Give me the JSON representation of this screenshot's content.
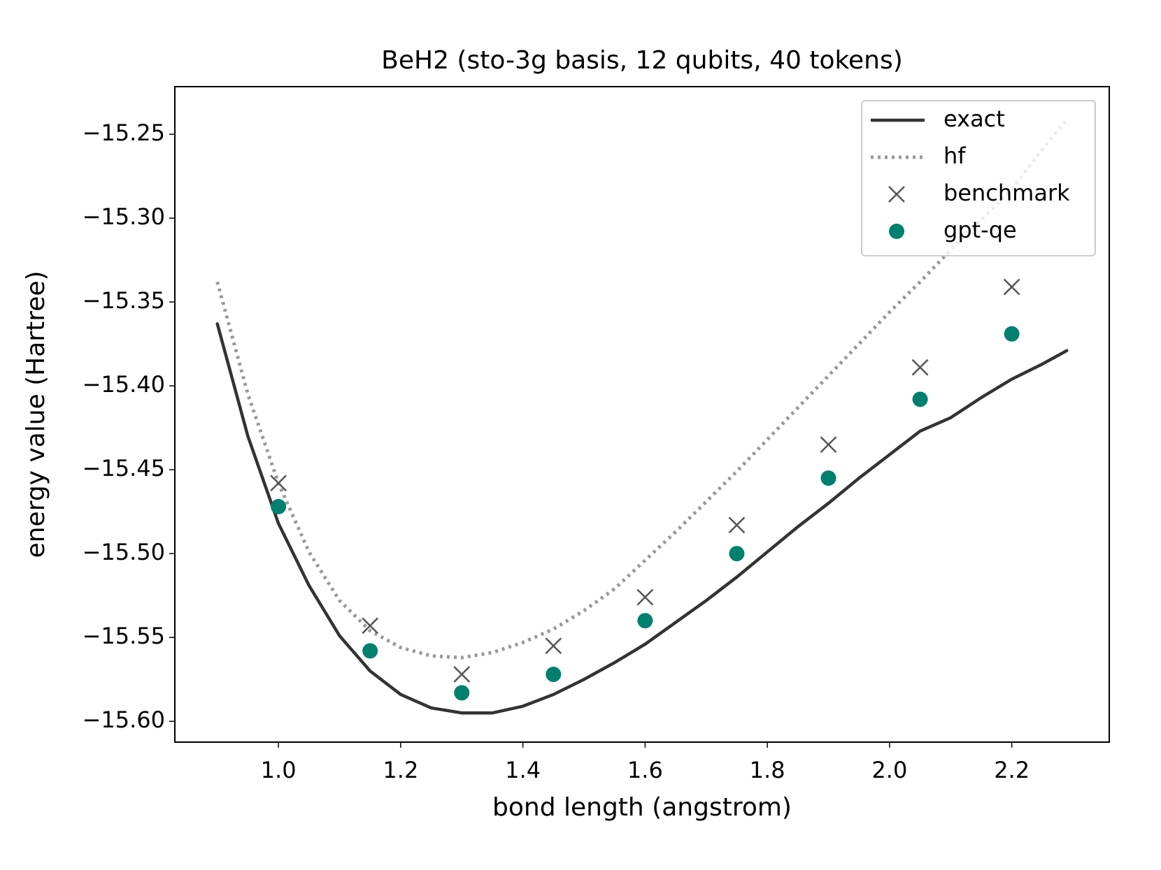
{
  "chart_data": {
    "type": "line",
    "title": "BeH2 (sto-3g basis, 12 qubits, 40 tokens)",
    "xlabel": "bond length (angstrom)",
    "ylabel": "energy value (Hartree)",
    "xlim": [
      0.8305,
      2.3595
    ],
    "ylim": [
      -15.6124,
      -15.2216
    ],
    "xticks": [
      {
        "value": 1.0,
        "label": "1.0"
      },
      1.2,
      1.4,
      1.6,
      1.8,
      {
        "value": 2.0,
        "label": "2.0"
      },
      2.2
    ],
    "yticks": [
      {
        "value": -15.6,
        "label": "−15.60"
      },
      {
        "value": -15.55,
        "label": "−15.55"
      },
      {
        "value": -15.5,
        "label": "−15.50"
      },
      {
        "value": -15.45,
        "label": "−15.45"
      },
      {
        "value": -15.4,
        "label": "−15.40"
      },
      {
        "value": -15.35,
        "label": "−15.35"
      },
      {
        "value": -15.3,
        "label": "−15.30"
      },
      {
        "value": -15.25,
        "label": "−15.25"
      }
    ],
    "grid": false,
    "legend": "upper right",
    "series": [
      {
        "name": "exact",
        "color": "#333333",
        "linestyle": "solid",
        "x": [
          0.9,
          0.95,
          1.0,
          1.05,
          1.1,
          1.15,
          1.2,
          1.25,
          1.3,
          1.35,
          1.4,
          1.45,
          1.5,
          1.55,
          1.6,
          1.65,
          1.7,
          1.75,
          1.8,
          1.85,
          1.9,
          1.95,
          2.0,
          2.05,
          2.1,
          2.15,
          2.2,
          2.25,
          2.29
        ],
        "values": [
          -15.363,
          -15.43,
          -15.482,
          -15.519,
          -15.549,
          -15.57,
          -15.584,
          -15.592,
          -15.595,
          -15.595,
          -15.591,
          -15.584,
          -15.575,
          -15.565,
          -15.554,
          -15.541,
          -15.528,
          -15.514,
          -15.499,
          -15.484,
          -15.47,
          -15.455,
          -15.441,
          -15.427,
          -15.419,
          -15.407,
          -15.396,
          -15.387,
          -15.379
        ]
      },
      {
        "name": "hf",
        "color": "#999999",
        "linestyle": "dotted",
        "x": [
          0.9,
          0.95,
          1.0,
          1.05,
          1.1,
          1.15,
          1.2,
          1.25,
          1.3,
          1.35,
          1.4,
          1.45,
          1.5,
          1.55,
          1.6,
          1.65,
          1.7,
          1.75,
          1.8,
          1.85,
          1.9,
          1.95,
          2.0,
          2.05,
          2.1,
          2.15,
          2.2,
          2.25,
          2.29
        ],
        "values": [
          -15.338,
          -15.405,
          -15.458,
          -15.499,
          -15.528,
          -15.546,
          -15.556,
          -15.561,
          -15.562,
          -15.559,
          -15.553,
          -15.545,
          -15.534,
          -15.521,
          -15.504,
          -15.487,
          -15.469,
          -15.451,
          -15.432,
          -15.413,
          -15.394,
          -15.375,
          -15.356,
          -15.338,
          -15.319,
          -15.301,
          -15.283,
          -15.259,
          -15.241
        ]
      },
      {
        "name": "benchmark",
        "color": "#555555",
        "marker": "x",
        "x": [
          1.0,
          1.15,
          1.3,
          1.45,
          1.6,
          1.75,
          1.9,
          2.05,
          2.2
        ],
        "values": [
          -15.458,
          -15.543,
          -15.572,
          -15.555,
          -15.526,
          -15.483,
          -15.435,
          -15.389,
          -15.341
        ]
      },
      {
        "name": "gpt-qe",
        "color": "#00806e",
        "marker": "o",
        "x": [
          1.0,
          1.15,
          1.3,
          1.45,
          1.6,
          1.75,
          1.9,
          2.05,
          2.2
        ],
        "values": [
          -15.472,
          -15.558,
          -15.583,
          -15.572,
          -15.54,
          -15.5,
          -15.455,
          -15.408,
          -15.369
        ]
      }
    ]
  }
}
